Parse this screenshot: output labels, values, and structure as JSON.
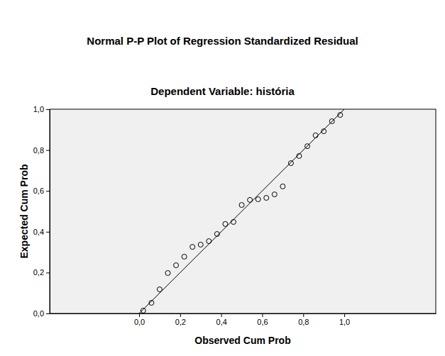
{
  "chart_data": {
    "type": "scatter",
    "title": "Normal P-P Plot of Regression Standardized Residual",
    "subtitle": "Dependent Variable: história",
    "x_label": "Observed Cum Prob",
    "y_label": "Expected Cum Prob",
    "x": [
      0.02,
      0.06,
      0.1,
      0.14,
      0.18,
      0.22,
      0.26,
      0.3,
      0.34,
      0.38,
      0.42,
      0.46,
      0.5,
      0.54,
      0.58,
      0.62,
      0.66,
      0.7,
      0.74,
      0.78,
      0.82,
      0.86,
      0.9,
      0.94,
      0.98
    ],
    "values": [
      0.014,
      0.052,
      0.118,
      0.198,
      0.236,
      0.278,
      0.326,
      0.337,
      0.354,
      0.389,
      0.438,
      0.448,
      0.531,
      0.556,
      0.559,
      0.566,
      0.583,
      0.622,
      0.736,
      0.771,
      0.819,
      0.872,
      0.892,
      0.941,
      0.972
    ],
    "marker": "circle",
    "reference_line": {
      "x": [
        0,
        1
      ],
      "y": [
        0,
        1
      ]
    },
    "xlim": [
      -0.436,
      1.446
    ],
    "ylim": [
      0,
      1
    ],
    "xticks": [
      {
        "value": 0,
        "label": "0,0"
      },
      {
        "value": 0.2,
        "label": "0,2"
      },
      {
        "value": 0.4,
        "label": "0,4"
      },
      {
        "value": 0.6,
        "label": "0,6"
      },
      {
        "value": 0.8,
        "label": "0,8"
      },
      {
        "value": 1,
        "label": "1,0"
      }
    ],
    "yticks": [
      {
        "value": 0,
        "label": "0,0"
      },
      {
        "value": 0.2,
        "label": "0,2"
      },
      {
        "value": 0.4,
        "label": "0,4"
      },
      {
        "value": 0.6,
        "label": "0,6"
      },
      {
        "value": 0.8,
        "label": "0,8"
      },
      {
        "value": 1,
        "label": "1,0"
      }
    ]
  }
}
